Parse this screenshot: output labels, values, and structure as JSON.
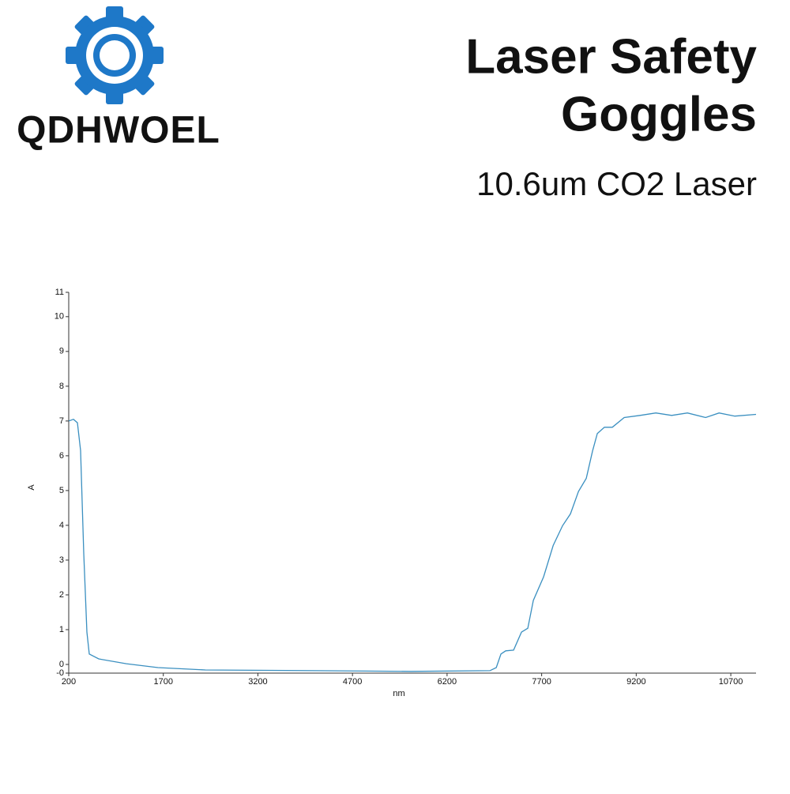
{
  "logo": {
    "text": "QDHWOEL"
  },
  "header": {
    "title_line1": "Laser Safety",
    "title_line2": "Goggles",
    "subtitle": "10.6um CO2 Laser"
  },
  "chart_data": {
    "type": "line",
    "x_label": "nm",
    "y_label": "A",
    "color": "#3a8fc0",
    "x": [
      200,
      275,
      338,
      388,
      438,
      488,
      526,
      676,
      1115,
      1616,
      2368,
      4122,
      5626,
      6879,
      6980,
      7055,
      7130,
      7255,
      7380,
      7481,
      7568,
      7731,
      7882,
      8032,
      8157,
      8283,
      8408,
      8508,
      8583,
      8696,
      8821,
      9009,
      9260,
      9511,
      9762,
      10012,
      10301,
      10514,
      10764,
      11100
    ],
    "values": [
      7.0,
      7.05,
      6.95,
      6.15,
      3.2,
      0.93,
      0.3,
      0.16,
      0.02,
      -0.09,
      -0.16,
      -0.18,
      -0.2,
      -0.18,
      -0.09,
      0.3,
      0.39,
      0.41,
      0.93,
      1.04,
      1.84,
      2.52,
      3.42,
      3.99,
      4.33,
      4.97,
      5.35,
      6.14,
      6.64,
      6.82,
      6.82,
      7.1,
      7.16,
      7.23,
      7.16,
      7.23,
      7.1,
      7.23,
      7.14,
      7.19
    ],
    "xlim": [
      200,
      11100
    ],
    "ylim": [
      -0.25,
      10.7
    ],
    "xticks": [
      200,
      1700,
      3200,
      4700,
      6200,
      7700,
      9200,
      10700
    ],
    "yticks": [
      {
        "value": -0.25,
        "label": "-0"
      },
      0,
      1,
      2,
      3,
      4,
      5,
      6,
      7,
      8,
      9,
      10,
      {
        "value": 10.7,
        "label": "11"
      }
    ]
  }
}
